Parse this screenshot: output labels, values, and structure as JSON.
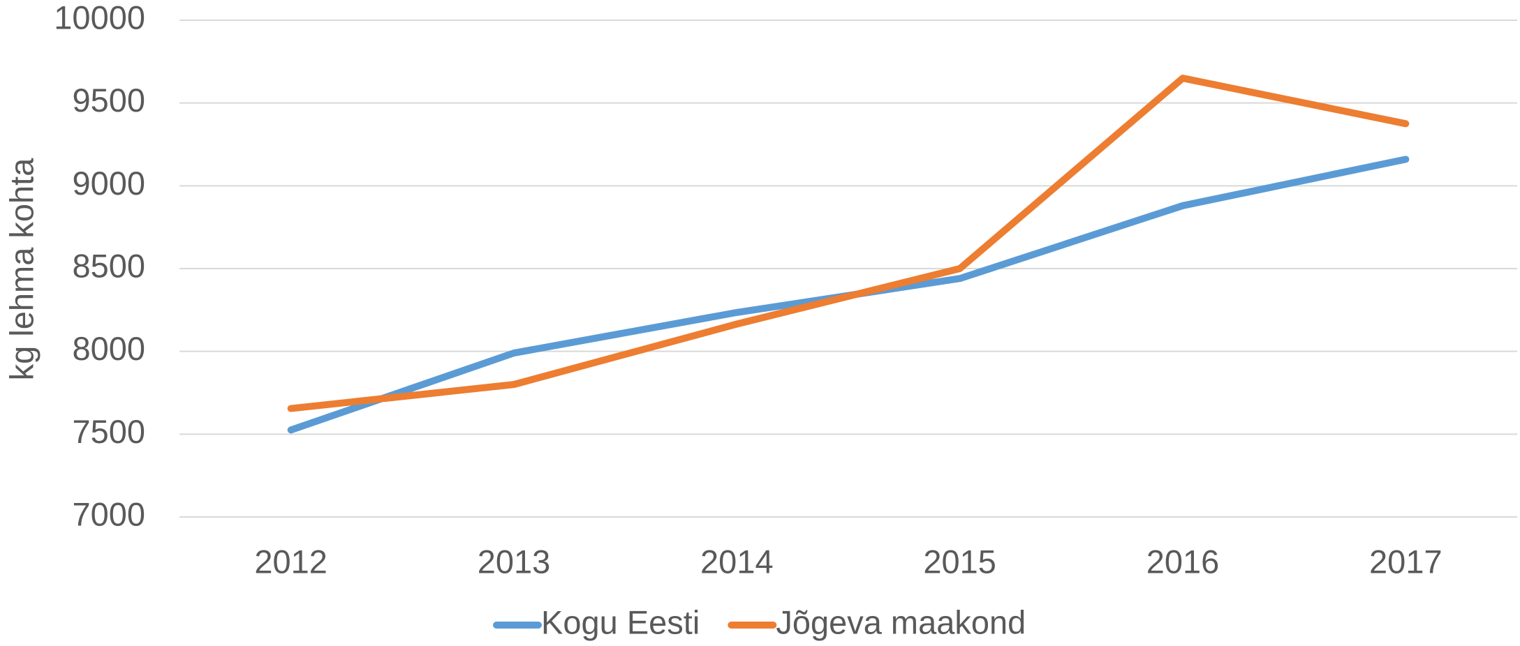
{
  "chart_data": {
    "type": "line",
    "y_label": "kg lehma kohta",
    "categories": [
      "2012",
      "2013",
      "2014",
      "2015",
      "2016",
      "2017"
    ],
    "series": [
      {
        "name": "Kogu Eesti",
        "color": "#5b9bd5",
        "values": [
          7525,
          7990,
          8235,
          8440,
          8880,
          9160
        ]
      },
      {
        "name": "Jõgeva maakond",
        "color": "#ed7d31",
        "values": [
          7655,
          7800,
          8165,
          8500,
          9650,
          9375
        ]
      }
    ],
    "ylim": [
      7000,
      10000
    ],
    "yticks": [
      7000,
      7500,
      8000,
      8500,
      9000,
      9500,
      10000
    ],
    "grid": true,
    "legend": "bottom"
  }
}
